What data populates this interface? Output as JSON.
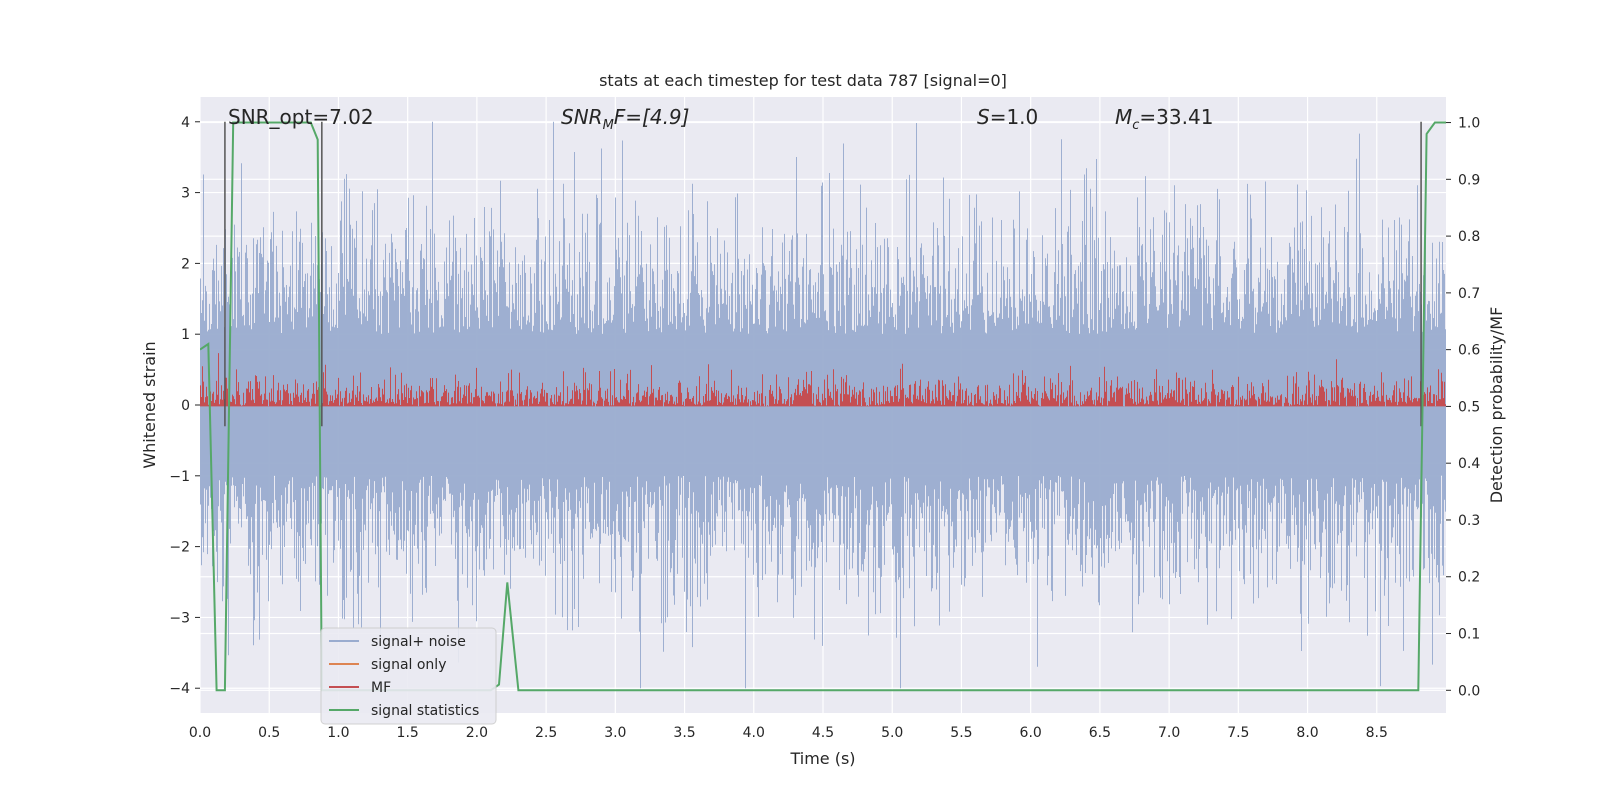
{
  "chart_data": {
    "type": "line",
    "title": "stats at each timestep for test data 787 [signal=0]",
    "xlabel": "Time (s)",
    "ylabel": "Whitened strain",
    "y2label": "Detection probability/MF",
    "xlim": [
      0.0,
      9.0
    ],
    "ylim": [
      -4.35,
      4.35
    ],
    "y2lim": [
      -0.04,
      1.045
    ],
    "x_ticks": [
      "0.0",
      "0.5",
      "1.0",
      "1.5",
      "2.0",
      "2.5",
      "3.0",
      "3.5",
      "4.0",
      "4.5",
      "5.0",
      "5.5",
      "6.0",
      "6.5",
      "7.0",
      "7.5",
      "8.0",
      "8.5"
    ],
    "y_ticks": [
      "4",
      "3",
      "2",
      "1",
      "0",
      "−1",
      "−2",
      "−3",
      "−4"
    ],
    "y2_ticks": [
      "1.0",
      "0.9",
      "0.8",
      "0.7",
      "0.6",
      "0.5",
      "0.4",
      "0.3",
      "0.2",
      "0.1",
      "0.0"
    ],
    "grid": true,
    "legend_position": "lower-left",
    "colors": {
      "background": "#eaeaf2",
      "grid": "#ffffff",
      "noise": "#9aaccf",
      "signal_only": "#dd8452",
      "mf": "#c44e52",
      "statistics": "#55a868",
      "marker": "#555555"
    },
    "annotations": {
      "snr_opt": "SNR_opt=7.02",
      "snr_mf_prefix": "SNR",
      "snr_mf_sub": "M",
      "snr_mf_suffix": "F=[4.9]",
      "s_label": "S",
      "s_value": "=1.0",
      "mc_label": "M",
      "mc_sub": "c",
      "mc_value": "=33.41"
    },
    "markers_x": [
      0.18,
      0.88,
      8.82
    ],
    "series": [
      {
        "name": "signal+ noise",
        "kind": "noise",
        "amplitude_sigma": 0.9,
        "range": [
          -4.0,
          4.0
        ]
      },
      {
        "name": "signal only",
        "kind": "flat",
        "values": []
      },
      {
        "name": "MF",
        "kind": "band",
        "baseline": 0.5,
        "range": [
          0.5,
          0.6
        ]
      },
      {
        "name": "signal statistics",
        "kind": "line",
        "x": [
          0.0,
          0.06,
          0.12,
          0.18,
          0.24,
          0.3,
          0.8,
          0.85,
          0.88,
          0.94,
          2.1,
          2.16,
          2.22,
          2.3,
          8.8,
          8.86,
          8.92,
          9.0
        ],
        "y": [
          0.6,
          0.61,
          0.0,
          0.0,
          1.0,
          1.0,
          1.0,
          0.97,
          0.0,
          0.0,
          0.0,
          0.01,
          0.19,
          0.0,
          0.0,
          0.98,
          1.0,
          1.0
        ]
      }
    ]
  }
}
